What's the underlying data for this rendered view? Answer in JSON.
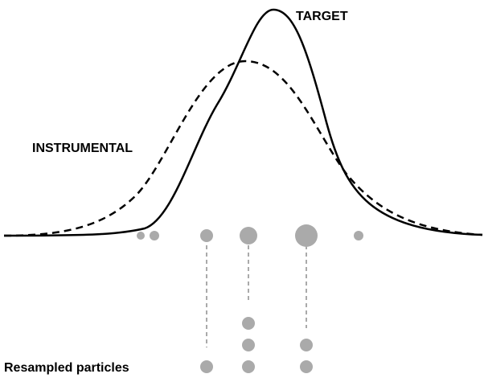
{
  "labels": {
    "target": "TARGET",
    "instrumental": "INSTRUMENTAL",
    "resampled": "Resampled particles"
  }
}
